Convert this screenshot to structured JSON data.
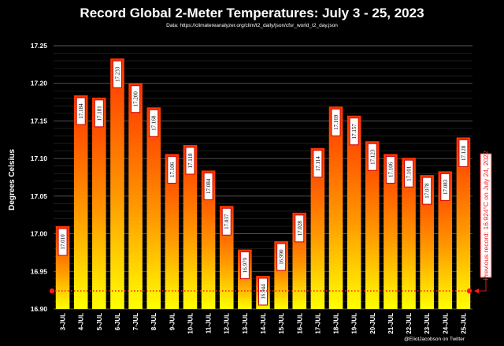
{
  "chart_data": {
    "type": "bar",
    "title": "Record Global 2-Meter Temperatures: July 3 - 25, 2023",
    "subtitle": "Data: https://climatereanalyzer.org/clim/t2_daily/json/cfsr_world_t2_day.json",
    "ylabel": "Degrees Celsius",
    "xlabel": "",
    "ylim": [
      16.9,
      17.25
    ],
    "yticks": [
      "16.90",
      "16.95",
      "17.00",
      "17.05",
      "17.10",
      "17.15",
      "17.20",
      "17.25"
    ],
    "grid": true,
    "categories": [
      "3-JUL",
      "4-JUL",
      "5-JUL",
      "6-JUL",
      "7-JUL",
      "8-JUL",
      "9-JUL",
      "10-JUL",
      "11-JUL",
      "12-JUL",
      "13-JUL",
      "14-JUL",
      "15-JUL",
      "16-JUL",
      "17-JUL",
      "18-JUL",
      "19-JUL",
      "20-JUL",
      "21-JUL",
      "22-JUL",
      "23-JUL",
      "24-JUL",
      "25-JUL"
    ],
    "values": [
      17.01,
      17.184,
      17.181,
      17.233,
      17.2,
      17.168,
      17.106,
      17.118,
      17.084,
      17.037,
      16.979,
      16.944,
      16.99,
      17.028,
      17.114,
      17.169,
      17.157,
      17.123,
      17.106,
      17.101,
      17.078,
      17.083,
      17.128
    ],
    "data_labels": [
      "17.010",
      "17.184",
      "17.181",
      "17.233",
      "17.200",
      "17.168",
      "17.106",
      "17.118",
      "17.084",
      "17.037",
      "16.979",
      "16.944",
      "16.990",
      "17.028",
      "17.114",
      "17.169",
      "17.157",
      "17.123",
      "17.106",
      "17.101",
      "17.078",
      "17.083",
      "17.128"
    ],
    "reference_line": {
      "value": 16.924,
      "label": "Previous record: 16.924°C on July 24, 2022",
      "color": "#ff1a1a"
    },
    "credit": "@EliotJacobson on Twitter",
    "colors": {
      "bar_top": "#ff3300",
      "bar_mid": "#ff9900",
      "bar_bottom": "#ffff00",
      "background": "#000000",
      "grid": "#444444",
      "label_border": "#cc0000"
    }
  }
}
